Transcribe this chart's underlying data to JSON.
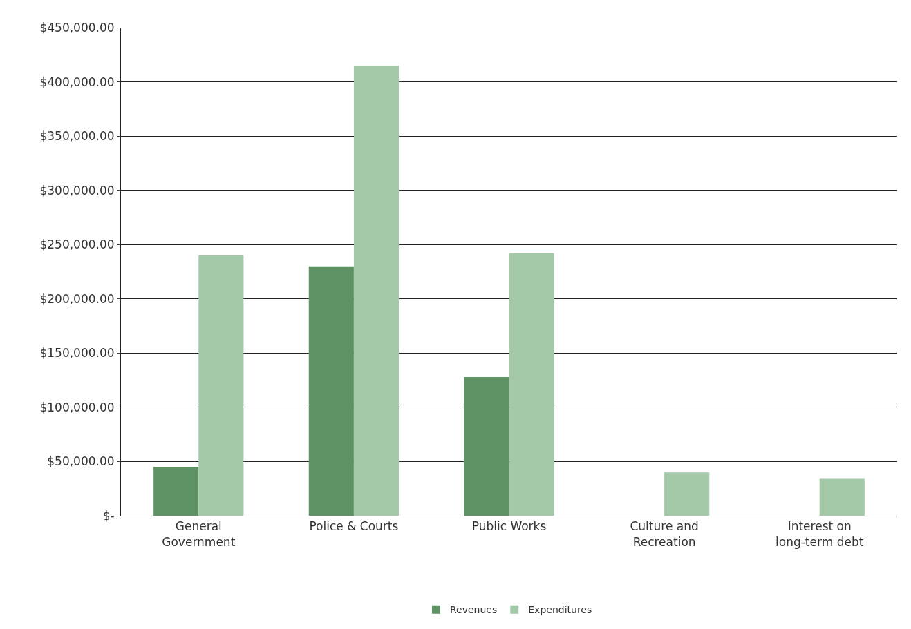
{
  "chart_data": {
    "type": "bar",
    "categories": [
      "General Government",
      "Police & Courts",
      "Public Works",
      "Culture and Recreation",
      "Interest on long-term debt"
    ],
    "series": [
      {
        "name": "Revenues",
        "color": "#5e9163",
        "values": [
          45000,
          230000,
          128000,
          0,
          0
        ]
      },
      {
        "name": "Expenditures",
        "color": "#a3c9a8",
        "values": [
          240000,
          415000,
          242000,
          40000,
          34000
        ]
      }
    ],
    "ylim": [
      0,
      450000
    ],
    "yticks": [
      {
        "value": 0,
        "label": "$-"
      },
      {
        "value": 50000,
        "label": "$50,000.00"
      },
      {
        "value": 100000,
        "label": "$100,000.00"
      },
      {
        "value": 150000,
        "label": "$150,000.00"
      },
      {
        "value": 200000,
        "label": "$200,000.00"
      },
      {
        "value": 250000,
        "label": "$250,000.00"
      },
      {
        "value": 300000,
        "label": "$300,000.00"
      },
      {
        "value": 350000,
        "label": "$350,000.00"
      },
      {
        "value": 400000,
        "label": "$400,000.00"
      },
      {
        "value": 450000,
        "label": "$450,000.00"
      }
    ],
    "grid": "y",
    "legend": "bottom"
  }
}
